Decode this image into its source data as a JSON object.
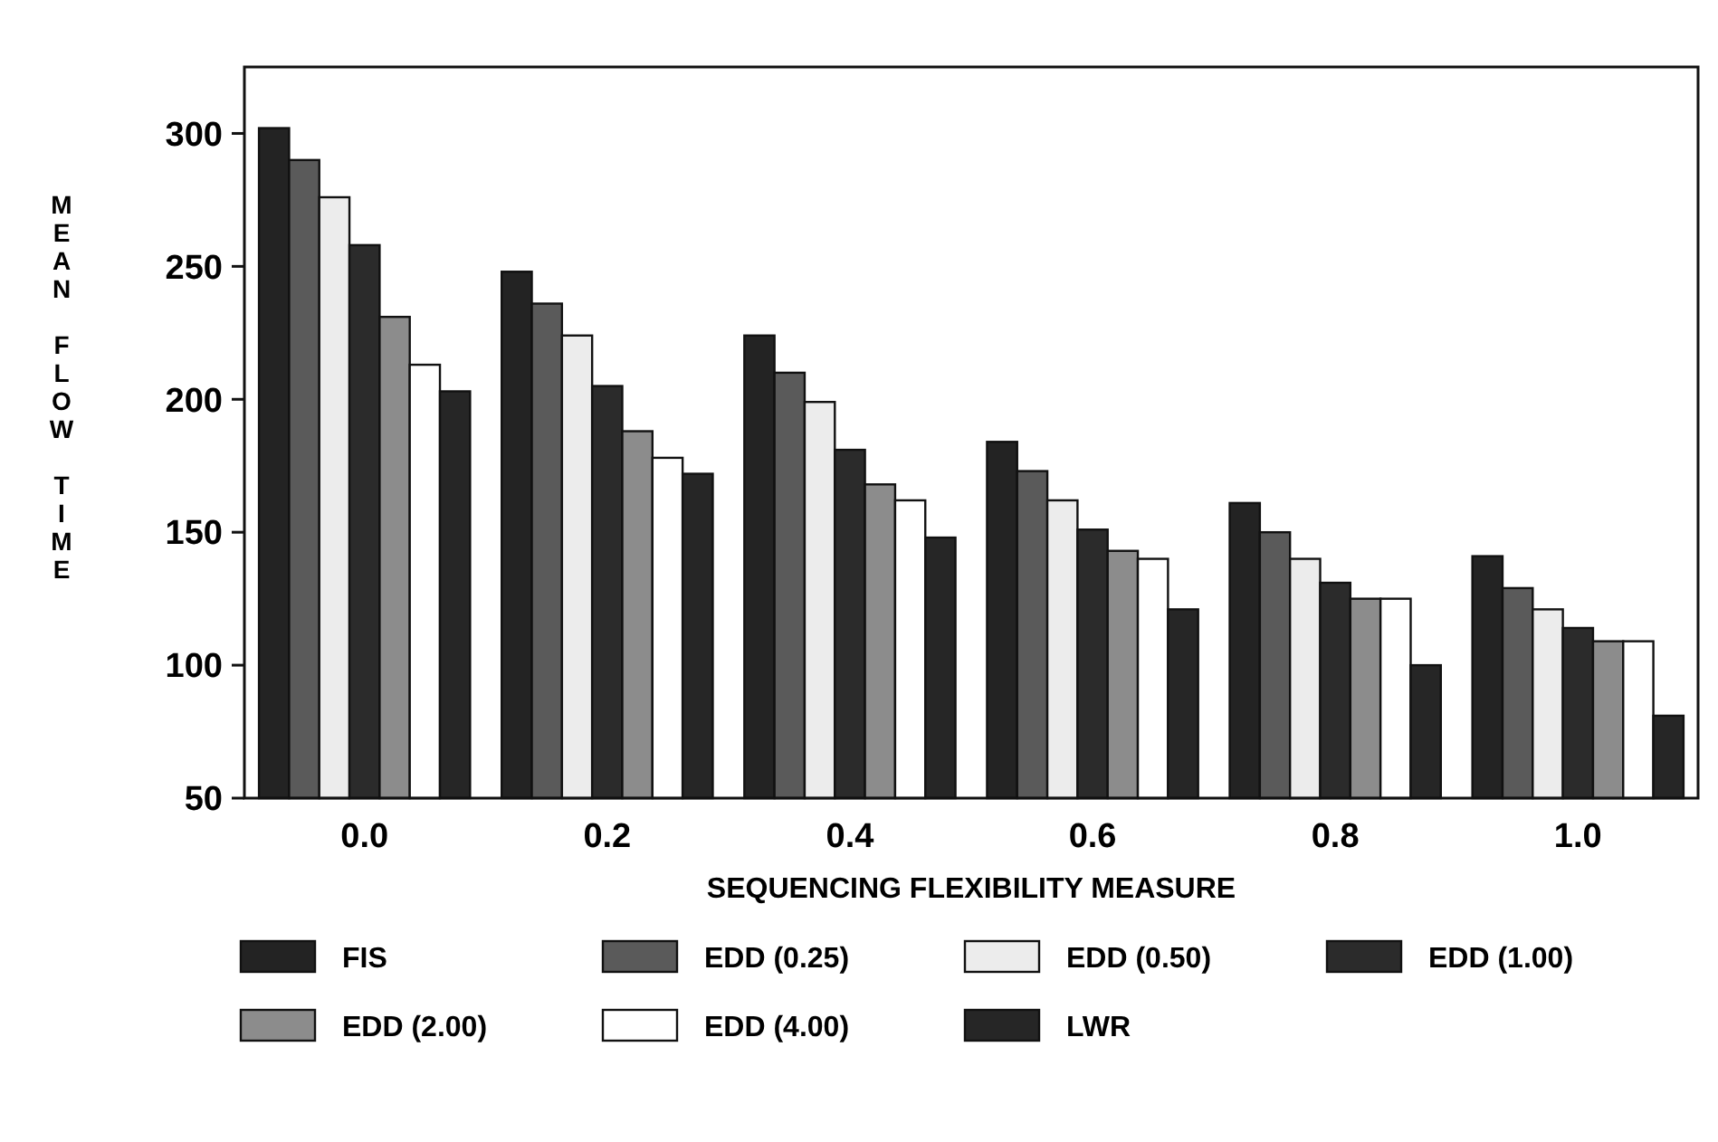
{
  "chart_data": {
    "type": "bar",
    "xlabel": "SEQUENCING FLEXIBILITY MEASURE",
    "ylabel": "MEAN FLOW TIME",
    "categories": [
      "0.0",
      "0.2",
      "0.4",
      "0.6",
      "0.8",
      "1.0"
    ],
    "series": [
      {
        "name": "FIS",
        "color": "#232323",
        "values": [
          302,
          248,
          224,
          184,
          161,
          141
        ]
      },
      {
        "name": "EDD (0.25)",
        "color": "#5a5a5a",
        "values": [
          290,
          236,
          210,
          173,
          150,
          129
        ]
      },
      {
        "name": "EDD (0.50)",
        "color": "#ececec",
        "values": [
          276,
          224,
          199,
          162,
          140,
          121
        ]
      },
      {
        "name": "EDD (1.00)",
        "color": "#2b2b2b",
        "values": [
          258,
          205,
          181,
          151,
          131,
          114
        ]
      },
      {
        "name": "EDD (2.00)",
        "color": "#8c8c8c",
        "values": [
          231,
          188,
          168,
          143,
          125,
          109
        ]
      },
      {
        "name": "EDD (4.00)",
        "color": "#ffffff",
        "values": [
          213,
          178,
          162,
          140,
          125,
          109
        ]
      },
      {
        "name": "LWR",
        "color": "#262626",
        "values": [
          203,
          172,
          148,
          121,
          100,
          81
        ]
      }
    ],
    "ylim": [
      50,
      325
    ],
    "yticks": [
      50,
      100,
      150,
      200,
      250,
      300
    ],
    "grid": false,
    "legend": "bottom"
  }
}
